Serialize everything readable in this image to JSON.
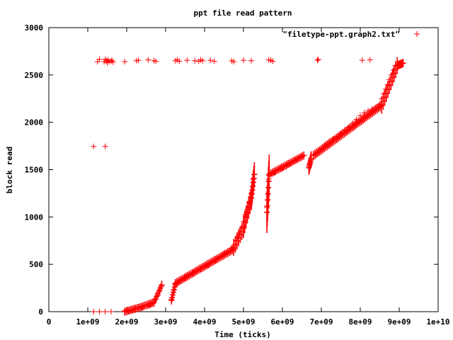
{
  "chart_data": {
    "type": "scatter",
    "title": "ppt file read pattern",
    "xlabel": "Time (ticks)",
    "ylabel": "block read",
    "xlim": [
      0,
      10000000000
    ],
    "ylim": [
      0,
      3000
    ],
    "xticks": [
      0,
      1000000000,
      2000000000,
      3000000000,
      4000000000,
      5000000000,
      6000000000,
      7000000000,
      8000000000,
      9000000000,
      10000000000
    ],
    "xtick_labels": [
      "0",
      "1e+09",
      "2e+09",
      "3e+09",
      "4e+09",
      "5e+09",
      "6e+09",
      "7e+09",
      "8e+09",
      "9e+09",
      "1e+10"
    ],
    "yticks": [
      0,
      500,
      1000,
      1500,
      2000,
      2500,
      3000
    ],
    "ytick_labels": [
      "0",
      "500",
      "1000",
      "1500",
      "2000",
      "2500",
      "3000"
    ],
    "grid": false,
    "legend_position": "top-right",
    "marker": "+",
    "color": "#ff0000",
    "series": [
      {
        "name": "\"filetype-ppt.graph2.txt\"",
        "points": [
          [
            1150000000,
            0
          ],
          [
            1300000000,
            0
          ],
          [
            1450000000,
            0
          ],
          [
            1600000000,
            0
          ],
          [
            1150000000,
            1745
          ],
          [
            1450000000,
            1745
          ],
          [
            1250000000,
            2640
          ],
          [
            1300000000,
            2665
          ],
          [
            1420000000,
            2640
          ],
          [
            1450000000,
            2665
          ],
          [
            1480000000,
            2650
          ],
          [
            1500000000,
            2630
          ],
          [
            1520000000,
            2660
          ],
          [
            1550000000,
            2640
          ],
          [
            1600000000,
            2645
          ],
          [
            1620000000,
            2655
          ],
          [
            1650000000,
            2635
          ],
          [
            1950000000,
            2640
          ],
          [
            2250000000,
            2650
          ],
          [
            2300000000,
            2655
          ],
          [
            2550000000,
            2660
          ],
          [
            2700000000,
            2650
          ],
          [
            2750000000,
            2645
          ],
          [
            3250000000,
            2650
          ],
          [
            3300000000,
            2660
          ],
          [
            3350000000,
            2645
          ],
          [
            3550000000,
            2655
          ],
          [
            3750000000,
            2650
          ],
          [
            3850000000,
            2645
          ],
          [
            3900000000,
            2660
          ],
          [
            3950000000,
            2650
          ],
          [
            4150000000,
            2655
          ],
          [
            4250000000,
            2645
          ],
          [
            4700000000,
            2650
          ],
          [
            4750000000,
            2640
          ],
          [
            5000000000,
            2655
          ],
          [
            5200000000,
            2650
          ],
          [
            5650000000,
            2660
          ],
          [
            5700000000,
            2655
          ],
          [
            5750000000,
            2645
          ],
          [
            6900000000,
            2655
          ],
          [
            6920000000,
            2665
          ],
          [
            8050000000,
            2655
          ],
          [
            8250000000,
            2660
          ],
          [
            1950000000,
            10
          ],
          [
            2000000000,
            20
          ],
          [
            2050000000,
            5
          ],
          [
            2100000000,
            15
          ],
          [
            2200000000,
            25
          ],
          [
            2300000000,
            30
          ],
          [
            2400000000,
            40
          ],
          [
            2500000000,
            55
          ],
          [
            2550000000,
            60
          ],
          [
            2600000000,
            65
          ],
          [
            2650000000,
            80
          ],
          [
            2700000000,
            100
          ],
          [
            2750000000,
            130
          ],
          [
            2800000000,
            170
          ],
          [
            2850000000,
            220
          ],
          [
            2900000000,
            270
          ],
          [
            3150000000,
            130
          ],
          [
            3200000000,
            230
          ],
          [
            3250000000,
            285
          ],
          [
            3300000000,
            300
          ],
          [
            3400000000,
            330
          ],
          [
            3500000000,
            360
          ],
          [
            3600000000,
            390
          ],
          [
            3700000000,
            410
          ],
          [
            3800000000,
            430
          ],
          [
            3900000000,
            450
          ],
          [
            4000000000,
            470
          ],
          [
            4100000000,
            490
          ],
          [
            4200000000,
            520
          ],
          [
            4300000000,
            550
          ],
          [
            4400000000,
            580
          ],
          [
            4500000000,
            610
          ],
          [
            4600000000,
            640
          ],
          [
            4700000000,
            670
          ],
          [
            4750000000,
            700
          ],
          [
            4800000000,
            750
          ],
          [
            4850000000,
            790
          ],
          [
            4900000000,
            830
          ],
          [
            4950000000,
            880
          ],
          [
            5000000000,
            950
          ],
          [
            5050000000,
            1030
          ],
          [
            5100000000,
            1080
          ],
          [
            5150000000,
            1150
          ],
          [
            5200000000,
            1250
          ],
          [
            5250000000,
            1400
          ],
          [
            5600000000,
            1100
          ],
          [
            5650000000,
            1400
          ],
          [
            5700000000,
            1450
          ],
          [
            5800000000,
            1470
          ],
          [
            5900000000,
            1490
          ],
          [
            6000000000,
            1510
          ],
          [
            6100000000,
            1530
          ],
          [
            6200000000,
            1560
          ],
          [
            6300000000,
            1590
          ],
          [
            6400000000,
            1620
          ],
          [
            6500000000,
            1640
          ],
          [
            6700000000,
            1560
          ],
          [
            6800000000,
            1650
          ],
          [
            6900000000,
            1680
          ],
          [
            7000000000,
            1720
          ],
          [
            7100000000,
            1760
          ],
          [
            7200000000,
            1800
          ],
          [
            7300000000,
            1820
          ],
          [
            7400000000,
            1850
          ],
          [
            7500000000,
            1880
          ],
          [
            7600000000,
            1920
          ],
          [
            7700000000,
            1950
          ],
          [
            7800000000,
            1990
          ],
          [
            7900000000,
            2030
          ],
          [
            8000000000,
            2070
          ],
          [
            8100000000,
            2100
          ],
          [
            8200000000,
            2120
          ],
          [
            8300000000,
            2140
          ],
          [
            8400000000,
            2160
          ],
          [
            8500000000,
            2190
          ],
          [
            8550000000,
            2250
          ],
          [
            8600000000,
            2300
          ],
          [
            8650000000,
            2350
          ],
          [
            8700000000,
            2400
          ],
          [
            8750000000,
            2450
          ],
          [
            8800000000,
            2500
          ],
          [
            8850000000,
            2550
          ],
          [
            8900000000,
            2600
          ],
          [
            9000000000,
            2615
          ],
          [
            9050000000,
            2625
          ]
        ],
        "dense_segments": [
          {
            "x_from": 1950000000,
            "x_to": 2300000000,
            "y_from": 0,
            "y_to": 40,
            "spread": 25
          },
          {
            "x_from": 2300000000,
            "x_to": 2700000000,
            "y_from": 40,
            "y_to": 100,
            "spread": 25
          },
          {
            "x_from": 2700000000,
            "x_to": 2900000000,
            "y_from": 100,
            "y_to": 280,
            "spread": 35
          },
          {
            "x_from": 3150000000,
            "x_to": 3250000000,
            "y_from": 120,
            "y_to": 290,
            "spread": 30
          },
          {
            "x_from": 3250000000,
            "x_to": 4750000000,
            "y_from": 300,
            "y_to": 660,
            "spread": 30
          },
          {
            "x_from": 4750000000,
            "x_to": 5000000000,
            "y_from": 680,
            "y_to": 880,
            "spread": 120
          },
          {
            "x_from": 5000000000,
            "x_to": 5200000000,
            "y_from": 900,
            "y_to": 1200,
            "spread": 180
          },
          {
            "x_from": 5200000000,
            "x_to": 5280000000,
            "y_from": 1200,
            "y_to": 1450,
            "spread": 200
          },
          {
            "x_from": 5600000000,
            "x_to": 5660000000,
            "y_from": 1050,
            "y_to": 1440,
            "spread": 380
          },
          {
            "x_from": 5660000000,
            "x_to": 6550000000,
            "y_from": 1450,
            "y_to": 1650,
            "spread": 25
          },
          {
            "x_from": 6680000000,
            "x_to": 6740000000,
            "y_from": 1520,
            "y_to": 1620,
            "spread": 90
          },
          {
            "x_from": 6800000000,
            "x_to": 8550000000,
            "y_from": 1650,
            "y_to": 2180,
            "spread": 40
          },
          {
            "x_from": 8550000000,
            "x_to": 8950000000,
            "y_from": 2180,
            "y_to": 2600,
            "spread": 120
          },
          {
            "x_from": 8950000000,
            "x_to": 9100000000,
            "y_from": 2600,
            "y_to": 2625,
            "spread": 30
          }
        ]
      }
    ]
  }
}
